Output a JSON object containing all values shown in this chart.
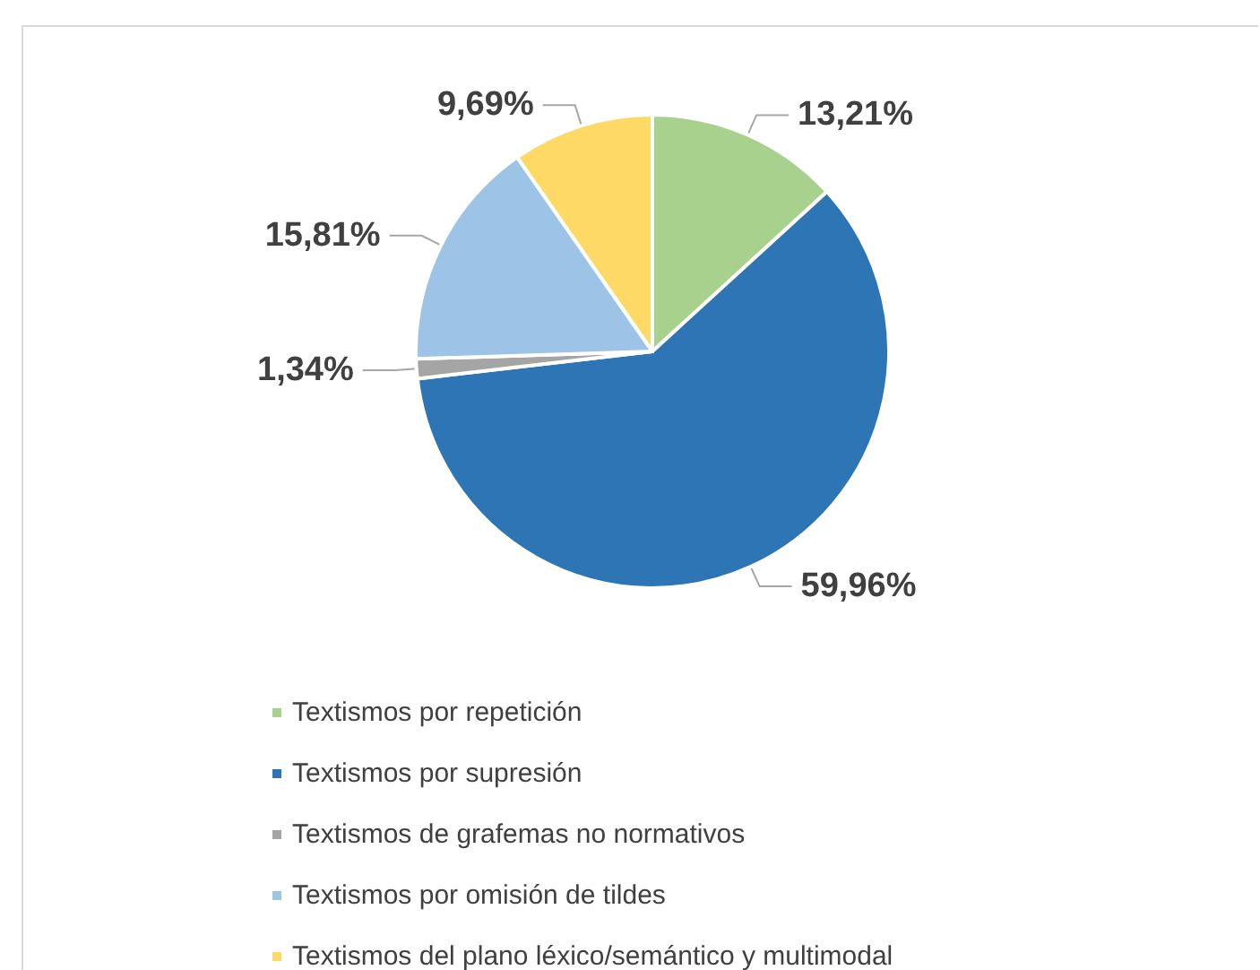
{
  "chart_data": {
    "type": "pie",
    "categories": [
      "Textismos por repetición",
      "Textismos por supresión",
      "Textismos de grafemas no normativos",
      "Textismos por omisión de tildes",
      "Textismos del plano léxico/semántico y multimodal"
    ],
    "values": [
      13.21,
      59.96,
      1.34,
      15.81,
      9.69
    ],
    "colors": [
      "#a9d18e",
      "#2e75b6",
      "#a5a5a5",
      "#9dc3e6",
      "#ffd966"
    ],
    "value_labels": [
      "13,21%",
      "59,96%",
      "1,34%",
      "15,81%",
      "9,69%"
    ],
    "legend": "bottom"
  }
}
